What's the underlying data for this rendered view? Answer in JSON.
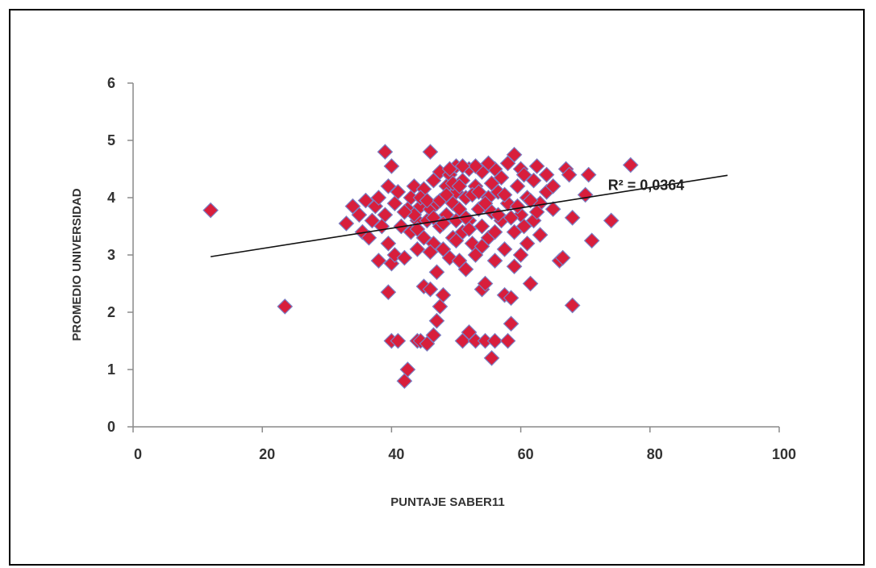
{
  "chart_data": {
    "type": "scatter",
    "xlabel": "PUNTAJE SABER11",
    "ylabel": "PROMEDIO UNIVERSIDAD",
    "xlim": [
      0,
      100
    ],
    "ylim": [
      0,
      6
    ],
    "x_ticks": [
      "0",
      "20",
      "40",
      "60",
      "80",
      "100"
    ],
    "y_ticks": [
      "0",
      "1",
      "2",
      "3",
      "4",
      "5",
      "6"
    ],
    "grid": false,
    "legend": "none",
    "marker": "diamond",
    "marker_color": "#d81e3c",
    "marker_edge_color": "#7b7fc4",
    "trendline": {
      "type": "linear",
      "from": [
        12,
        2.97
      ],
      "to": [
        92,
        4.39
      ],
      "color": "#111111",
      "label": "R² = 0,0364"
    },
    "points": [
      [
        12,
        3.78
      ],
      [
        23.5,
        2.1
      ],
      [
        33,
        3.55
      ],
      [
        34,
        3.85
      ],
      [
        35,
        3.7
      ],
      [
        35.5,
        3.4
      ],
      [
        36,
        3.95
      ],
      [
        36.5,
        3.3
      ],
      [
        37,
        3.6
      ],
      [
        37.5,
        3.85
      ],
      [
        38,
        4.0
      ],
      [
        38,
        2.9
      ],
      [
        38.5,
        3.5
      ],
      [
        39,
        4.8
      ],
      [
        39,
        3.7
      ],
      [
        39.5,
        3.2
      ],
      [
        39.5,
        4.2
      ],
      [
        39.5,
        2.35
      ],
      [
        40,
        4.55
      ],
      [
        40,
        2.85
      ],
      [
        40,
        1.5
      ],
      [
        40.5,
        3.0
      ],
      [
        40.5,
        3.9
      ],
      [
        41,
        4.1
      ],
      [
        41,
        1.5
      ],
      [
        41.5,
        3.5
      ],
      [
        42,
        0.8
      ],
      [
        42,
        2.95
      ],
      [
        42.5,
        1.0
      ],
      [
        42.5,
        3.8
      ],
      [
        43,
        4.0
      ],
      [
        43,
        3.4
      ],
      [
        43.5,
        4.2
      ],
      [
        44,
        3.6
      ],
      [
        44,
        3.1
      ],
      [
        44,
        1.5
      ],
      [
        44.5,
        3.85
      ],
      [
        44.5,
        1.5
      ],
      [
        45,
        4.15
      ],
      [
        45,
        2.45
      ],
      [
        45,
        3.3
      ],
      [
        45.5,
        3.6
      ],
      [
        45.5,
        1.45
      ],
      [
        46,
        4.8
      ],
      [
        46,
        2.4
      ],
      [
        46,
        3.8
      ],
      [
        46.5,
        4.3
      ],
      [
        46.5,
        1.6
      ],
      [
        46.5,
        3.2
      ],
      [
        47,
        2.7
      ],
      [
        47,
        3.9
      ],
      [
        47,
        1.85
      ],
      [
        47.5,
        2.1
      ],
      [
        47.5,
        4.45
      ],
      [
        47.5,
        3.5
      ],
      [
        48,
        2.3
      ],
      [
        48,
        3.1
      ],
      [
        48.5,
        4.2
      ],
      [
        48.5,
        3.7
      ],
      [
        49,
        4.4
      ],
      [
        49,
        2.95
      ],
      [
        49.5,
        3.9
      ],
      [
        49.5,
        3.3
      ],
      [
        50,
        4.1
      ],
      [
        50,
        3.6
      ],
      [
        50,
        4.55
      ],
      [
        50.5,
        2.9
      ],
      [
        50.5,
        3.8
      ],
      [
        51,
        1.5
      ],
      [
        51,
        4.3
      ],
      [
        51,
        3.4
      ],
      [
        51.5,
        2.75
      ],
      [
        51.5,
        4.0
      ],
      [
        52,
        1.65
      ],
      [
        52,
        3.6
      ],
      [
        52,
        4.5
      ],
      [
        52.5,
        3.2
      ],
      [
        53,
        1.5
      ],
      [
        53,
        4.2
      ],
      [
        53,
        3.0
      ],
      [
        53.5,
        3.8
      ],
      [
        54,
        2.4
      ],
      [
        54,
        4.45
      ],
      [
        54,
        3.5
      ],
      [
        54.5,
        1.5
      ],
      [
        54.5,
        2.5
      ],
      [
        55,
        4.0
      ],
      [
        55,
        3.3
      ],
      [
        55.5,
        1.2
      ],
      [
        55.5,
        3.75
      ],
      [
        56,
        4.5
      ],
      [
        56,
        2.9
      ],
      [
        56,
        1.5
      ],
      [
        56.5,
        4.1
      ],
      [
        57,
        3.6
      ],
      [
        57,
        4.35
      ],
      [
        57.5,
        2.3
      ],
      [
        57.5,
        3.1
      ],
      [
        58,
        1.5
      ],
      [
        58,
        3.9
      ],
      [
        58,
        4.6
      ],
      [
        58.5,
        2.25
      ],
      [
        58.5,
        1.8
      ],
      [
        59,
        4.75
      ],
      [
        59,
        3.4
      ],
      [
        59,
        2.8
      ],
      [
        59.5,
        4.2
      ],
      [
        60,
        3.0
      ],
      [
        60,
        4.5
      ],
      [
        60,
        3.7
      ],
      [
        60.5,
        4.4
      ],
      [
        61,
        3.2
      ],
      [
        61,
        4.0
      ],
      [
        61.5,
        2.5
      ],
      [
        62,
        3.6
      ],
      [
        62,
        4.3
      ],
      [
        62.5,
        4.55
      ],
      [
        63,
        3.9
      ],
      [
        63,
        3.35
      ],
      [
        64,
        4.4
      ],
      [
        64,
        4.1
      ],
      [
        65,
        3.8
      ],
      [
        65,
        4.2
      ],
      [
        66,
        2.9
      ],
      [
        66.5,
        2.95
      ],
      [
        67,
        4.5
      ],
      [
        67.5,
        4.4
      ],
      [
        68,
        3.65
      ],
      [
        68,
        2.12
      ],
      [
        70,
        4.05
      ],
      [
        70.5,
        4.4
      ],
      [
        71,
        3.25
      ],
      [
        74,
        3.6
      ],
      [
        77,
        4.57
      ],
      [
        43.5,
        3.7
      ],
      [
        44.5,
        4.0
      ],
      [
        45.5,
        3.95
      ],
      [
        46.5,
        3.65
      ],
      [
        47.5,
        3.95
      ],
      [
        48.5,
        4.05
      ],
      [
        49.5,
        4.25
      ],
      [
        50.5,
        4.2
      ],
      [
        51.5,
        3.65
      ],
      [
        52.5,
        4.05
      ],
      [
        53.5,
        4.1
      ],
      [
        54.5,
        3.9
      ],
      [
        55.5,
        4.25
      ],
      [
        56.5,
        3.7
      ],
      [
        57.5,
        4.05
      ],
      [
        58.5,
        3.65
      ],
      [
        59.5,
        3.85
      ],
      [
        60.5,
        3.5
      ],
      [
        61.5,
        3.95
      ],
      [
        62.5,
        3.75
      ],
      [
        48,
        3.55
      ],
      [
        50,
        3.25
      ],
      [
        52,
        3.45
      ],
      [
        54,
        3.15
      ],
      [
        56,
        3.4
      ],
      [
        46,
        3.05
      ],
      [
        44,
        3.45
      ],
      [
        42,
        3.75
      ],
      [
        55,
        4.6
      ],
      [
        53,
        4.55
      ],
      [
        51,
        4.55
      ],
      [
        49,
        4.5
      ]
    ]
  }
}
